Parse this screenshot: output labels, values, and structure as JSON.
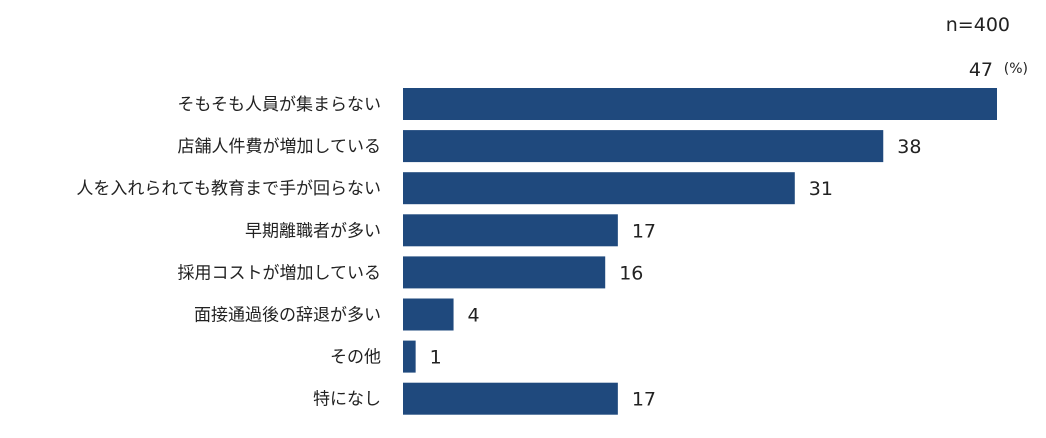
{
  "chart_data": {
    "type": "bar",
    "orientation": "horizontal",
    "sample_size_label": "n=400",
    "unit_label": "(%)",
    "bar_color": "#1F497D",
    "categories": [
      "そもそも人員が集まらない",
      "店舗人件費が増加している",
      "人を入れられても教育まで手が回らない",
      "早期離職者が多い",
      "採用コストが増加している",
      "面接通過後の辞退が多い",
      "その他",
      "特になし"
    ],
    "values": [
      47,
      38,
      31,
      17,
      16,
      4,
      1,
      17
    ],
    "xlim": [
      0,
      47
    ]
  }
}
